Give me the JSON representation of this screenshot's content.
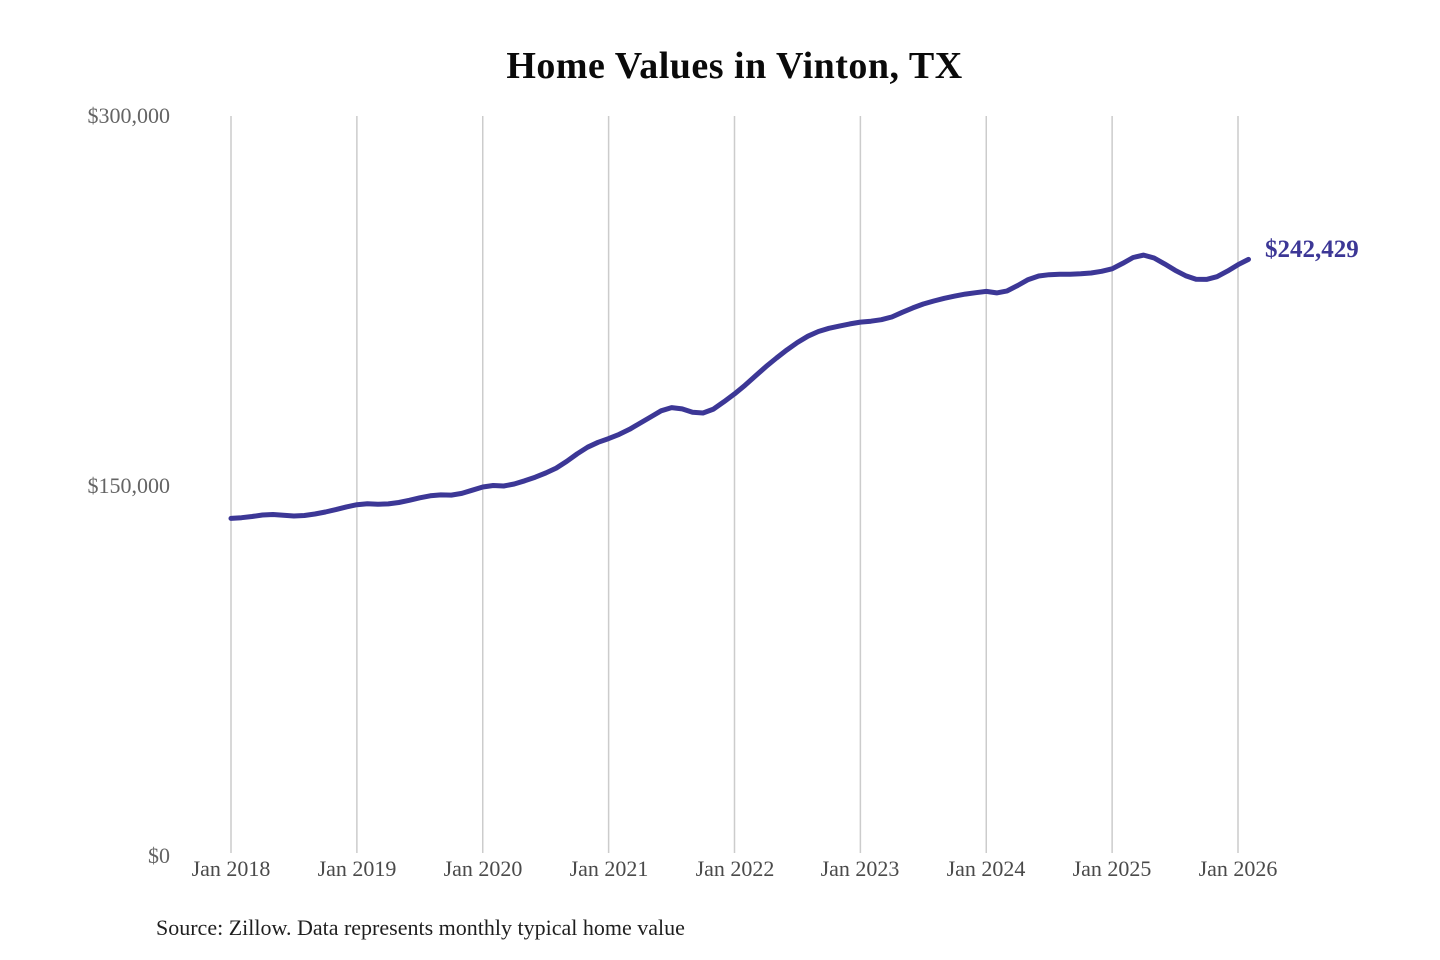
{
  "footer": {
    "source": "Source: Zillow. Data represents monthly typical home value"
  },
  "chart_data": {
    "type": "line",
    "title": "Home Values in Vinton, TX",
    "subtitle": "",
    "series_name": "Monthly typical home value",
    "frequency": "monthly",
    "x_start": "Jan 2018",
    "x_end": "Feb 2026",
    "x_tick_labels": [
      "Jan 2018",
      "Jan 2019",
      "Jan 2020",
      "Jan 2021",
      "Jan 2022",
      "Jan 2023",
      "Jan 2024",
      "Jan 2025",
      "Jan 2026"
    ],
    "y_tick_labels": [
      "$300,000",
      "$150,000",
      "$0"
    ],
    "ylim": [
      0,
      300000
    ],
    "grid": "vertical-only",
    "legend": "none",
    "end_label": "$242,429",
    "end_value": 242429,
    "line_color": "#3c3796",
    "grid_color": "#cccccc",
    "values": [
      137000,
      137300,
      137800,
      138400,
      138600,
      138300,
      138000,
      138200,
      138800,
      139600,
      140600,
      141700,
      142600,
      143000,
      142800,
      142900,
      143500,
      144400,
      145400,
      146200,
      146600,
      146500,
      147200,
      148500,
      149800,
      150400,
      150200,
      151000,
      152300,
      153800,
      155500,
      157500,
      160200,
      163300,
      166000,
      168000,
      169500,
      171200,
      173300,
      175800,
      178300,
      180800,
      182100,
      181600,
      180200,
      179900,
      181500,
      184500,
      187700,
      191200,
      195000,
      198800,
      202300,
      205600,
      208600,
      211200,
      213100,
      214400,
      215300,
      216200,
      216900,
      217300,
      217900,
      219000,
      220900,
      222700,
      224300,
      225500,
      226600,
      227500,
      228300,
      228900,
      229400,
      228800,
      229600,
      231800,
      234200,
      235700,
      236200,
      236400,
      236400,
      236600,
      236900,
      237600,
      238600,
      240800,
      243200,
      244200,
      243000,
      240600,
      238000,
      235800,
      234400,
      234300,
      235400,
      237700,
      240300,
      242429
    ]
  }
}
